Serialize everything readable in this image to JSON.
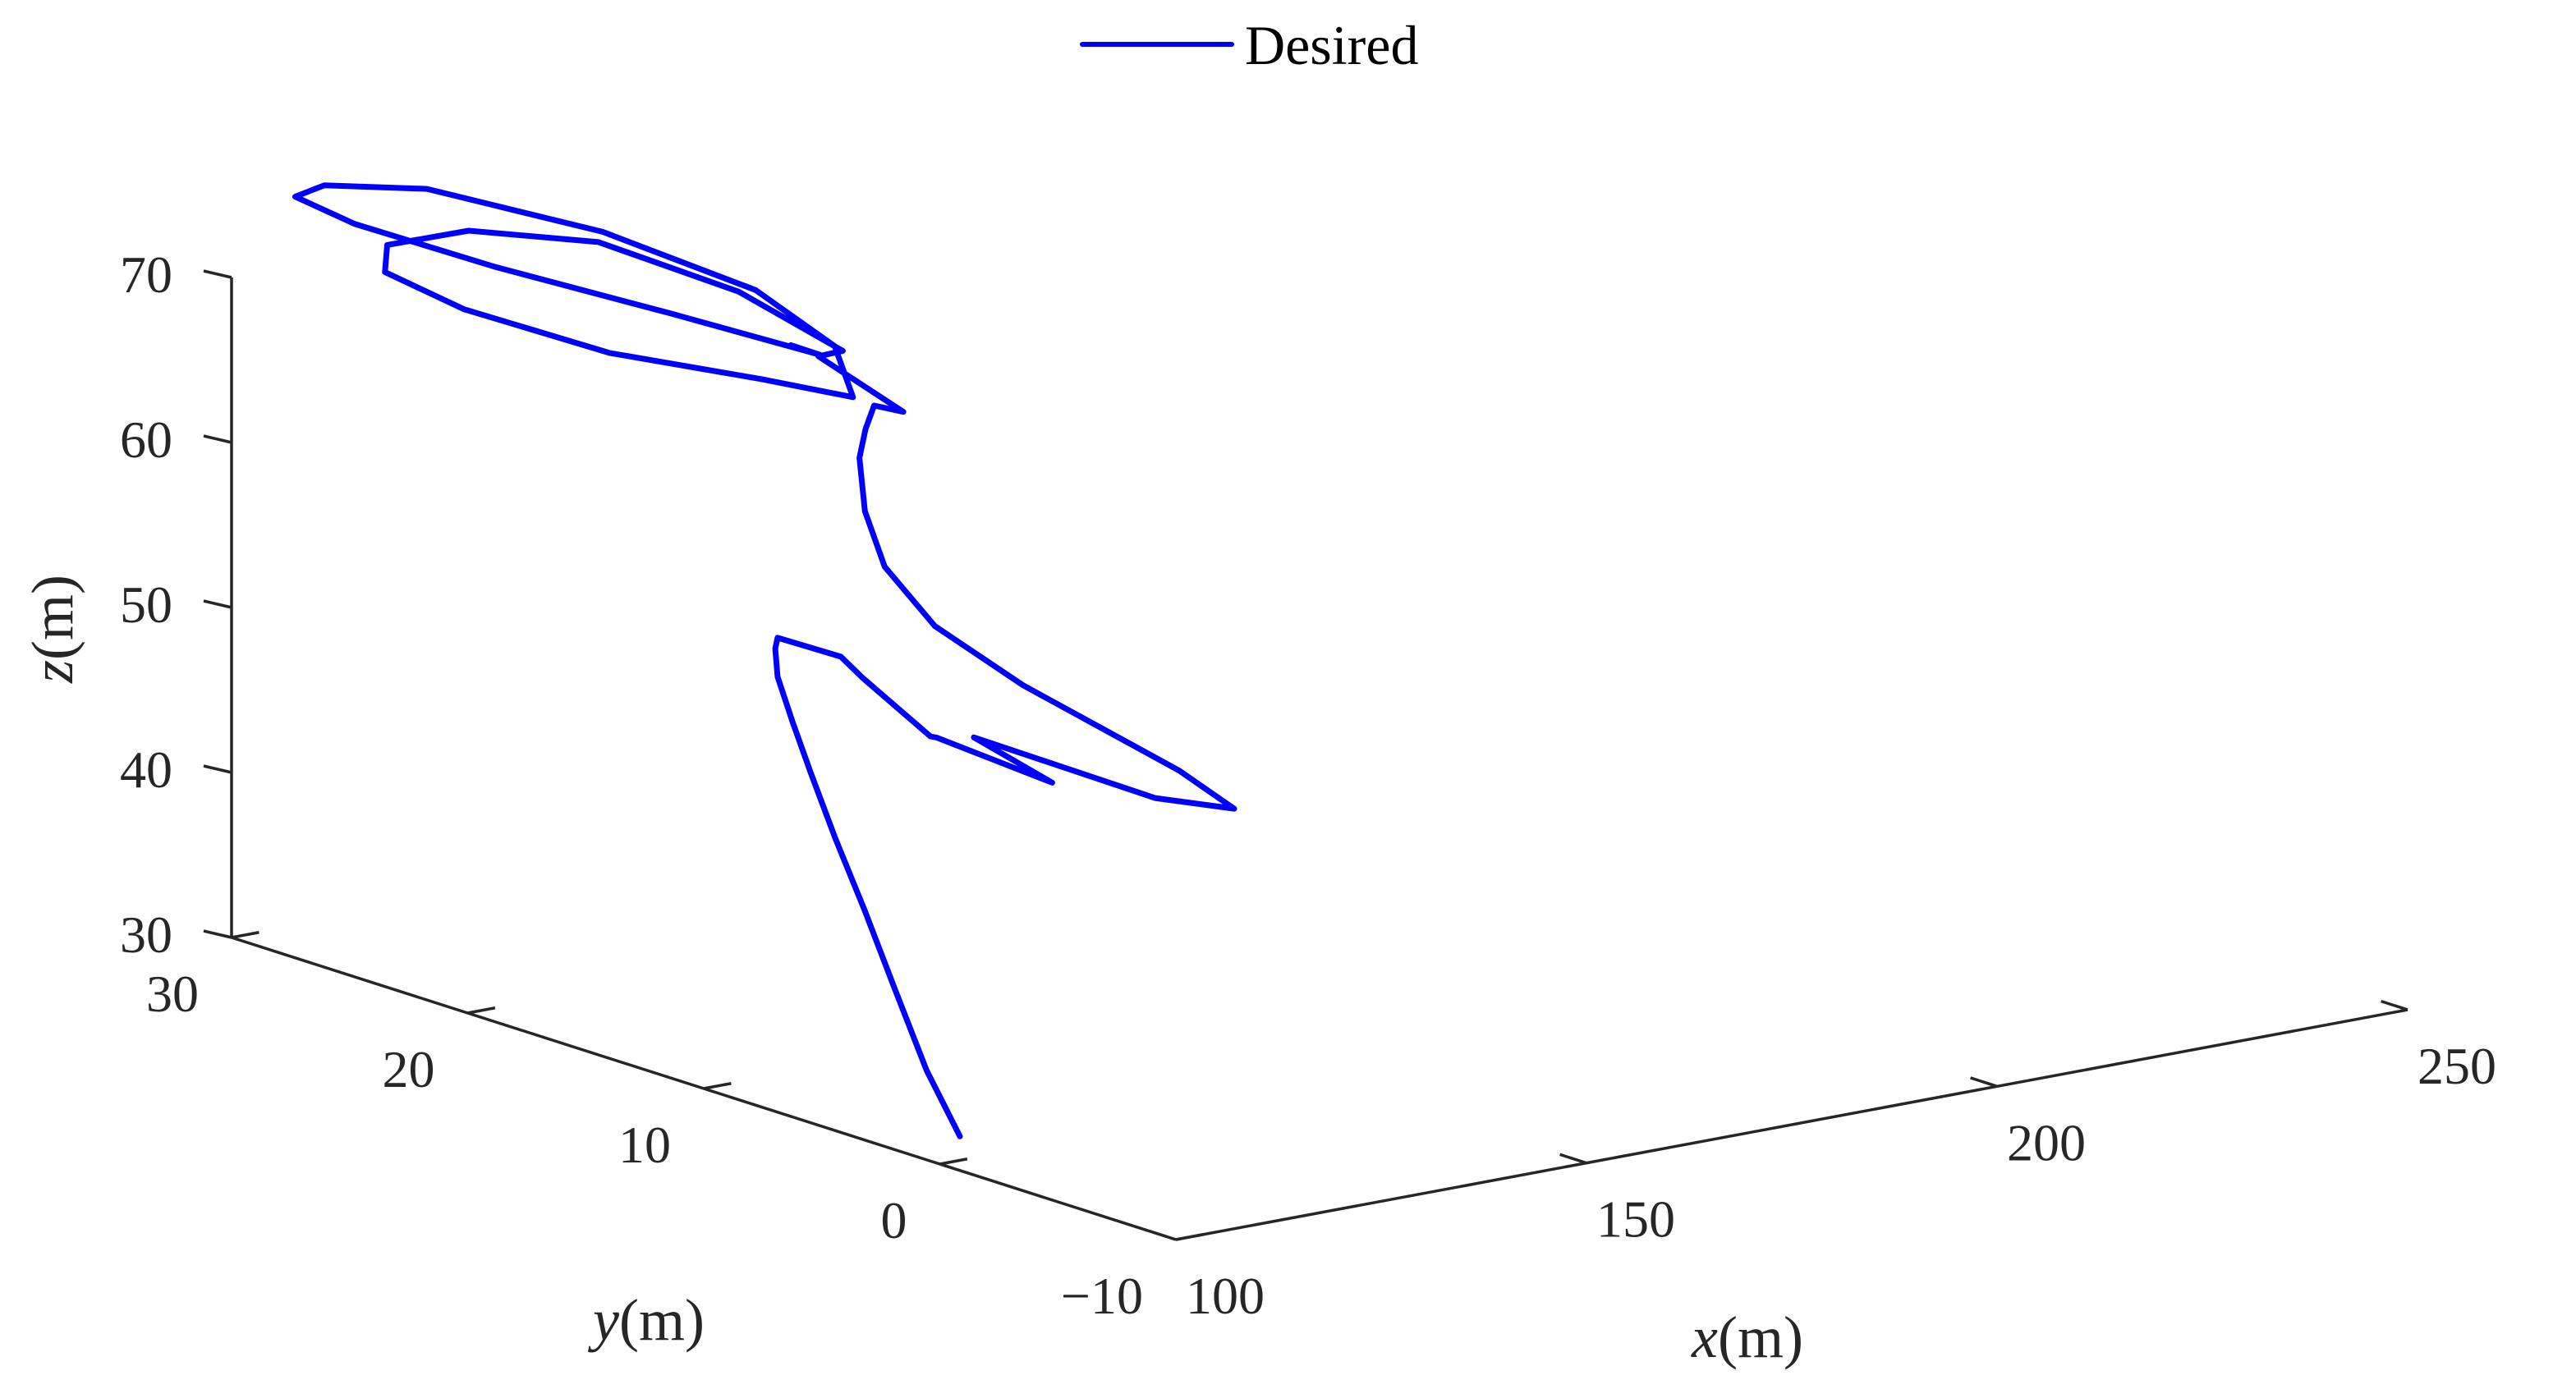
{
  "chart_data": {
    "type": "line3d",
    "title": "",
    "xlabel": {
      "var": "x",
      "unit": "(m)"
    },
    "ylabel": {
      "var": "y",
      "unit": "(m)"
    },
    "zlabel": {
      "var": "z",
      "unit": "(m)"
    },
    "xlim": [
      100,
      250
    ],
    "ylim": [
      -10,
      30
    ],
    "zlim": [
      30,
      70
    ],
    "xticks": [
      100,
      150,
      200,
      250
    ],
    "yticks": [
      -10,
      0,
      10,
      20,
      30
    ],
    "zticks": [
      30,
      40,
      50,
      60,
      70
    ],
    "xtick_labels": [
      "100",
      "150",
      "200",
      "250"
    ],
    "ytick_labels": [
      "−10",
      "0",
      "10",
      "20",
      "30"
    ],
    "ztick_labels": [
      "30",
      "40",
      "50",
      "60",
      "70"
    ],
    "grid": false,
    "legend": {
      "position": "top-center",
      "entries": [
        "Desired"
      ]
    },
    "series": [
      {
        "name": "Desired",
        "color": "#0000FF",
        "points": [
          [
            108.2,
            2.0,
            30.0
          ],
          [
            109.6,
            3.9,
            33.0
          ],
          [
            110.9,
            5.7,
            37.0
          ],
          [
            112.4,
            7.5,
            40.8
          ],
          [
            114.0,
            9.3,
            44.2
          ],
          [
            115.9,
            11.0,
            47.2
          ],
          [
            117.7,
            12.4,
            49.5
          ],
          [
            120.2,
            13.9,
            51.3
          ],
          [
            122.8,
            14.9,
            52.3
          ],
          [
            124.8,
            15.5,
            52.5
          ],
          [
            127.9,
            13.9,
            51.8
          ],
          [
            128.5,
            13.2,
            50.8
          ],
          [
            129.9,
            10.8,
            48.2
          ],
          [
            130.1,
            10.6,
            48.2
          ],
          [
            134.1,
            7.1,
            46.7
          ],
          [
            132.6,
            9.9,
            48.3
          ],
          [
            140.3,
            4.9,
            46.2
          ],
          [
            146.2,
            3.6,
            45.6
          ],
          [
            145.2,
            5.6,
            47.1
          ],
          [
            140.6,
            10.6,
            50.4
          ],
          [
            138.5,
            13.6,
            52.8
          ],
          [
            139.0,
            15.9,
            55.3
          ],
          [
            140.9,
            17.4,
            57.8
          ],
          [
            143.4,
            18.5,
            60.3
          ],
          [
            145.3,
            18.9,
            61.7
          ],
          [
            147.2,
            19.2,
            62.8
          ],
          [
            149.9,
            18.9,
            62.3
          ],
          [
            147.6,
            21.7,
            64.6
          ],
          [
            150.0,
            21.5,
            64.8
          ],
          [
            147.1,
            24.9,
            67.1
          ],
          [
            139.5,
            28.2,
            69.3
          ],
          [
            128.3,
            29.8,
            70.3
          ],
          [
            117.8,
            29.6,
            70.5
          ],
          [
            113.5,
            28.2,
            69.9
          ],
          [
            116.2,
            25.8,
            68.5
          ],
          [
            125.6,
            22.9,
            66.3
          ],
          [
            137.7,
            20.7,
            64.6
          ],
          [
            145.2,
            19.4,
            63.4
          ],
          [
            149.3,
            21.6,
            65.1
          ],
          [
            148.0,
            24.5,
            67.3
          ],
          [
            140.3,
            28.3,
            69.8
          ],
          [
            128.4,
            31.6,
            72.0
          ],
          [
            118.2,
            32.4,
            72.8
          ],
          [
            113.2,
            31.9,
            72.8
          ],
          [
            115.6,
            30.2,
            71.7
          ],
          [
            124.4,
            27.3,
            69.6
          ],
          [
            136.6,
            24.2,
            67.1
          ],
          [
            146.9,
            21.4,
            64.9
          ],
          [
            145.4,
            22.1,
            65.3
          ]
        ]
      }
    ]
  }
}
